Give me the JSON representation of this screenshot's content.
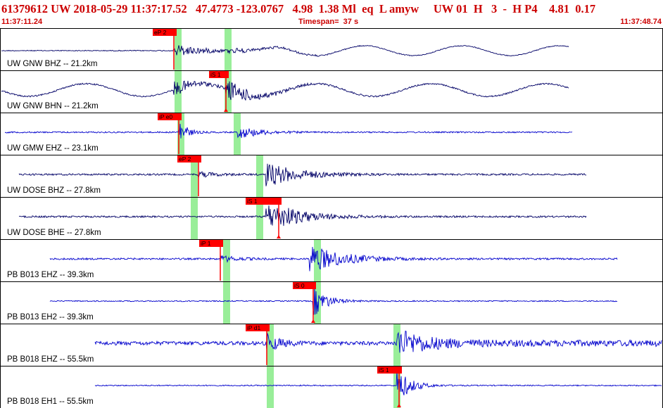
{
  "header": {
    "title": "61379612 UW 2018-05-29 11:37:17.52   47.4773 -123.0767   4.98  1.38 Ml  eq  L amyw     UW 01  H   3  -  H P4    4.81  0.17",
    "start_time": "11:37:11.24",
    "timespan": "Timespan=  37 s",
    "end_time": "11:37:48.74"
  },
  "colors": {
    "title": "#cc0000",
    "trace_dark": "#000066",
    "trace_blue": "#0000cc",
    "pick_flag": "#ff0000",
    "window_band": "#99ee99",
    "panel_border": "#000000"
  },
  "panels": [
    {
      "label": "UW GNW BHZ -- 21.2km",
      "trace_color": "dark",
      "picks": [
        {
          "label": "eP 2",
          "style": "P"
        }
      ]
    },
    {
      "label": "UW GNW BHN -- 21.2km",
      "trace_color": "dark",
      "picks": [
        {
          "label": "iS 1",
          "style": "S"
        }
      ]
    },
    {
      "label": "UW GMW EHZ -- 23.1km",
      "trace_color": "blue",
      "picks": [
        {
          "label": "iP e0",
          "style": "P"
        }
      ]
    },
    {
      "label": "UW DOSE BHZ -- 27.8km",
      "trace_color": "dark",
      "picks": [
        {
          "label": "eP 2",
          "style": "P"
        }
      ]
    },
    {
      "label": "UW DOSE BHE -- 27.8km",
      "trace_color": "dark",
      "picks": [
        {
          "label": "iS 1",
          "style": "S"
        }
      ]
    },
    {
      "label": "PB B013 EHZ -- 39.3km",
      "trace_color": "blue",
      "picks": [
        {
          "label": "iP 1",
          "style": "P"
        }
      ]
    },
    {
      "label": "PB B013 EH2 -- 39.3km",
      "trace_color": "blue",
      "picks": [
        {
          "label": "iS 0",
          "style": "S"
        }
      ]
    },
    {
      "label": "PB B018 EHZ -- 55.5km",
      "trace_color": "blue",
      "picks": [
        {
          "label": "iP d1",
          "style": "P"
        }
      ]
    },
    {
      "label": "PB B018 EH1 -- 55.5km",
      "trace_color": "blue",
      "picks": [
        {
          "label": "iS 1",
          "style": "S"
        }
      ]
    }
  ]
}
